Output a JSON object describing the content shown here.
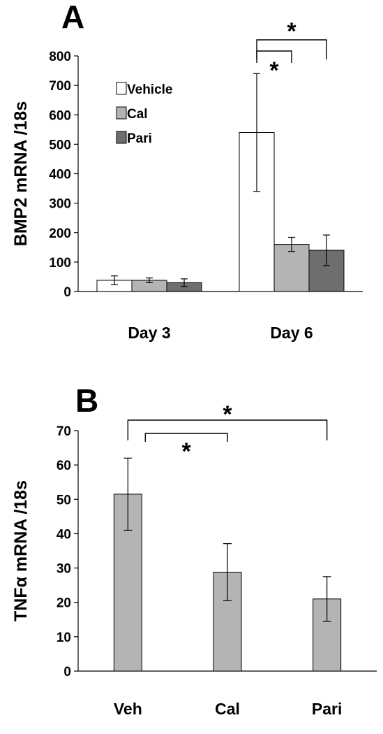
{
  "chart_data": [
    {
      "panel_label": "A",
      "type": "bar",
      "ylabel": "BMP2 mRNA /18s",
      "ylim": [
        0,
        800
      ],
      "yticks": [
        0,
        100,
        200,
        300,
        400,
        500,
        600,
        700,
        800
      ],
      "categories": [
        "Day 3",
        "Day 6"
      ],
      "series": [
        {
          "name": "Vehicle",
          "color": "#ffffff",
          "values": [
            38,
            540
          ],
          "errors": [
            15,
            200
          ]
        },
        {
          "name": "Cal",
          "color": "#b4b4b4",
          "values": [
            38,
            160
          ],
          "errors": [
            8,
            24
          ]
        },
        {
          "name": "Pari",
          "color": "#6e6e6e",
          "values": [
            30,
            140
          ],
          "errors": [
            13,
            52
          ]
        }
      ],
      "legend_position": "top-left",
      "grid": false,
      "significance": [
        {
          "category": "Day 6",
          "from": "Vehicle",
          "to": "Cal",
          "label": "*"
        },
        {
          "category": "Day 6",
          "from": "Vehicle",
          "to": "Pari",
          "label": "*"
        }
      ]
    },
    {
      "panel_label": "B",
      "type": "bar",
      "ylabel": "TNFα mRNA /18s",
      "ylim": [
        0,
        70
      ],
      "yticks": [
        0,
        10,
        20,
        30,
        40,
        50,
        60,
        70
      ],
      "categories": [
        "Veh",
        "Cal",
        "Pari"
      ],
      "series": [
        {
          "color": "#b4b4b4",
          "values": [
            51.5,
            28.8,
            21
          ],
          "errors": [
            10.5,
            8.3,
            6.5
          ]
        }
      ],
      "grid": false,
      "significance": [
        {
          "from": "Veh",
          "to": "Cal",
          "label": "*"
        },
        {
          "from": "Veh",
          "to": "Pari",
          "label": "*"
        }
      ]
    }
  ]
}
